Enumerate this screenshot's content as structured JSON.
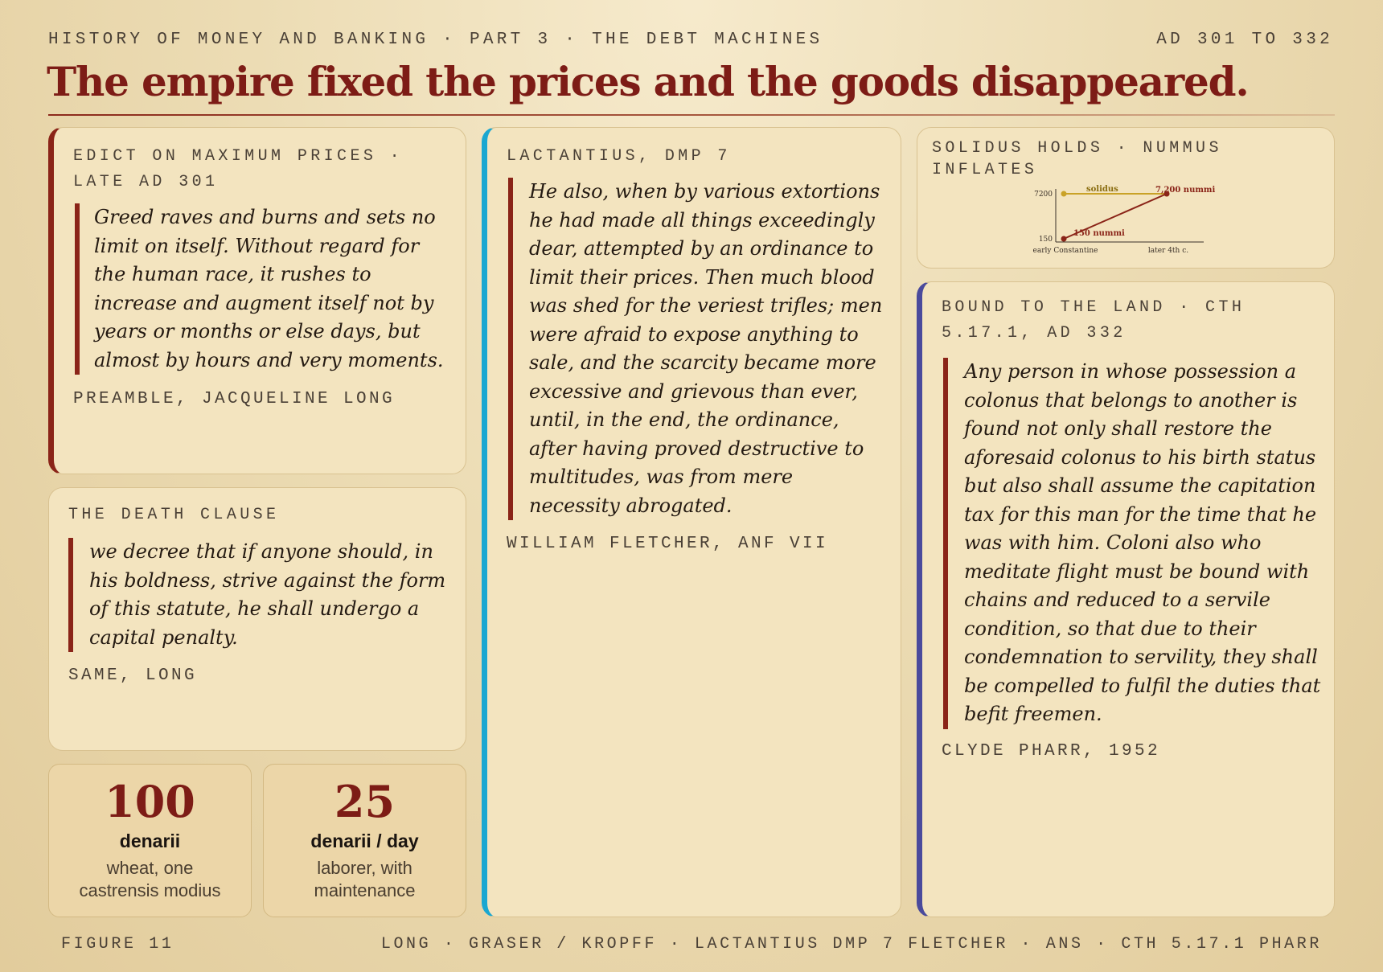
{
  "header": {
    "kicker": "HISTORY OF MONEY AND BANKING · PART 3 · THE DEBT MACHINES",
    "date_range": "AD 301 TO 332",
    "title": "The empire fixed the prices and the goods disappeared."
  },
  "cards": {
    "edict": {
      "label": "EDICT ON MAXIMUM PRICES · LATE AD 301",
      "quote": "Greed raves and burns and sets no limit on itself. Without regard for the human race, it rushes to increase and augment itself not by years or months or else days, but almost by hours and very moments.",
      "cite": "PREAMBLE, JACQUELINE LONG"
    },
    "death_clause": {
      "label": "THE DEATH CLAUSE",
      "quote": "we decree that if anyone should, in his boldness, strive against the form of this statute, he shall undergo a capital penalty.",
      "cite": "SAME, LONG"
    },
    "lactantius": {
      "label": "LACTANTIUS, DMP 7",
      "quote": "He also, when by various extortions he had made all things exceedingly dear, attempted by an ordinance to limit their prices. Then much blood was shed for the veriest trifles; men were afraid to expose anything to sale, and the scarcity became more excessive and grievous than ever, until, in the end, the ordinance, after having proved destructive to multitudes, was from mere necessity abrogated.",
      "cite": "WILLIAM FLETCHER, ANF VII"
    },
    "solidus": {
      "label": "SOLIDUS HOLDS · NUMMUS INFLATES"
    },
    "bound": {
      "label": "BOUND TO THE LAND · CTH 5.17.1, AD 332",
      "quote": "Any person in whose possession a colonus that belongs to another is found not only shall restore the aforesaid colonus to his birth status but also shall assume the capitation tax for this man for the time that he was with him. Coloni also who meditate flight must be bound with chains and reduced to a servile condition, so that due to their condemnation to servility, they shall be compelled to fulfil the duties that befit freemen.",
      "cite": "CLYDE PHARR, 1952"
    }
  },
  "stats": [
    {
      "value": "100",
      "unit": "denarii",
      "desc_line1": "wheat, one",
      "desc_line2": "castrensis modius"
    },
    {
      "value": "25",
      "unit": "denarii / day",
      "desc_line1": "laborer, with",
      "desc_line2": "maintenance"
    }
  ],
  "chart_data": {
    "type": "line",
    "x": [
      "early Constantine",
      "later 4th c."
    ],
    "y_ticks": [
      "7200",
      "150"
    ],
    "series": [
      {
        "label": "solidus",
        "values": [
          7200,
          7200
        ],
        "color": "#c9a227"
      },
      {
        "label": "150 nummi",
        "end_label": "7,200 nummi",
        "values": [
          150,
          7200
        ],
        "color": "#8a2418"
      }
    ],
    "ylim": [
      150,
      7200
    ],
    "grid": false
  },
  "footer": {
    "left": "FIGURE 11",
    "right": "LONG · GRASER / KROPFF · LACTANTIUS DMP 7 FLETCHER · ANS · CTH 5.17.1 PHARR"
  }
}
